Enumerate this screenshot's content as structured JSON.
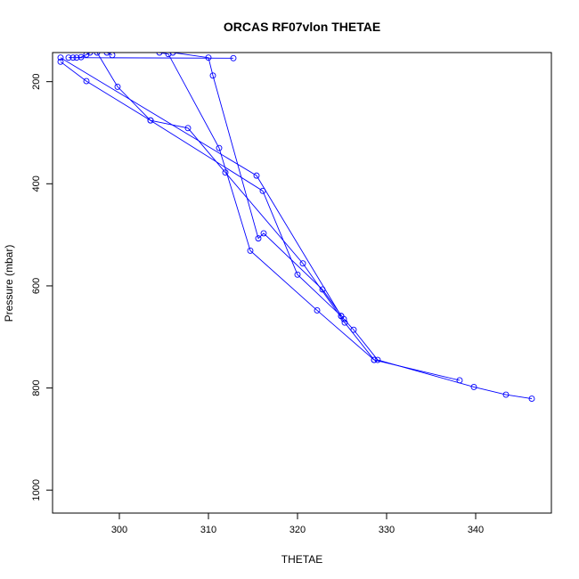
{
  "chart_data": {
    "type": "line",
    "title": "ORCAS RF07vlon THETAE",
    "xlabel": "THETAE",
    "ylabel": "Pressure (mbar)",
    "xlim": [
      292.5,
      348.5
    ],
    "ylim": [
      1045,
      143
    ],
    "y_reversed": true,
    "xticks": [
      300,
      310,
      320,
      330,
      340
    ],
    "yticks": [
      200,
      400,
      600,
      800,
      1000
    ],
    "grid": false,
    "legend": "none",
    "series_color": "#0000ff",
    "series": [
      {
        "x": [
          346.3,
          343.4,
          339.8,
          329.0,
          326.3,
          325.2,
          322.8,
          316.2,
          315.6,
          310.5,
          310.0,
          306.0
        ],
        "y": [
          821,
          813,
          798,
          745,
          686,
          665,
          607,
          497,
          507,
          188,
          153,
          143
        ]
      },
      {
        "x": [
          338.2,
          328.6,
          325.3,
          320.6,
          311.9,
          307.7,
          303.5,
          296.3,
          293.4
        ],
        "y": [
          785,
          745,
          672,
          556,
          378,
          291,
          276,
          199,
          161
        ]
      },
      {
        "x": [
          328.6,
          322.2,
          314.7,
          311.2,
          305.5,
          304.5
        ],
        "y": [
          745,
          648,
          531,
          330,
          146,
          143
        ]
      },
      {
        "x": [
          324.9,
          320.0,
          316.1,
          303.5,
          299.8,
          297.5
        ],
        "y": [
          659,
          578,
          414,
          276,
          210,
          143
        ]
      },
      {
        "x": [
          324.9,
          315.4,
          293.4
        ],
        "y": [
          659,
          384,
          153
        ]
      },
      {
        "x": [
          312.8,
          294.3,
          294.8,
          295.2,
          295.7,
          296.3,
          296.7
        ],
        "y": [
          154,
          153,
          153,
          153,
          152,
          147,
          143
        ]
      },
      {
        "x": [
          299.2,
          298.6
        ],
        "y": [
          148,
          143
        ]
      }
    ]
  }
}
